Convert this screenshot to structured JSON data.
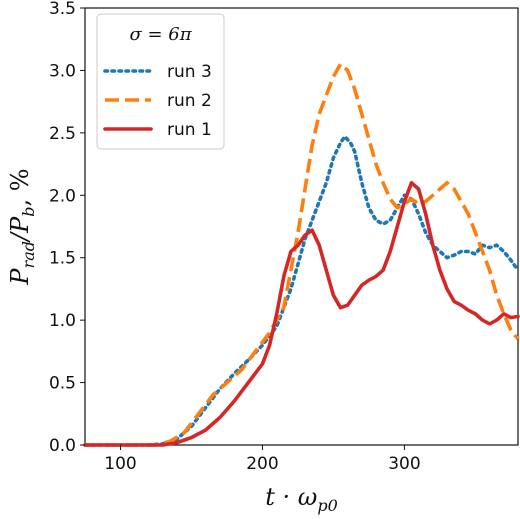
{
  "chart_data": {
    "type": "line",
    "xlabel": "t · ω",
    "xlabel_sub": "p0",
    "ylabel_main": "P",
    "ylabel_sub1": "rad",
    "ylabel_mid": "/P",
    "ylabel_sub2": "b",
    "ylabel_tail": ", %",
    "xlim": [
      75,
      380
    ],
    "ylim": [
      0,
      3.5
    ],
    "xticks": [
      100,
      200,
      300
    ],
    "yticks": [
      0.0,
      0.5,
      1.0,
      1.5,
      2.0,
      2.5,
      3.0,
      3.5
    ],
    "ytick_labels": [
      "0.0",
      "0.5",
      "1.0",
      "1.5",
      "2.0",
      "2.5",
      "3.0",
      "3.5"
    ],
    "grid": false,
    "legend": {
      "title": "σ = 6π",
      "placement": "top-left"
    },
    "series": [
      {
        "name": "run 3",
        "color": "#1f77b4",
        "style": "dotted",
        "points": [
          [
            75,
            0
          ],
          [
            120,
            0
          ],
          [
            130,
            0.01
          ],
          [
            140,
            0.05
          ],
          [
            150,
            0.15
          ],
          [
            160,
            0.3
          ],
          [
            170,
            0.45
          ],
          [
            180,
            0.57
          ],
          [
            190,
            0.68
          ],
          [
            200,
            0.8
          ],
          [
            210,
            0.95
          ],
          [
            220,
            1.25
          ],
          [
            225,
            1.45
          ],
          [
            230,
            1.65
          ],
          [
            235,
            1.8
          ],
          [
            240,
            1.95
          ],
          [
            245,
            2.1
          ],
          [
            250,
            2.3
          ],
          [
            255,
            2.42
          ],
          [
            258,
            2.47
          ],
          [
            262,
            2.42
          ],
          [
            265,
            2.35
          ],
          [
            270,
            2.1
          ],
          [
            275,
            1.9
          ],
          [
            280,
            1.8
          ],
          [
            285,
            1.77
          ],
          [
            290,
            1.8
          ],
          [
            295,
            1.9
          ],
          [
            300,
            2.0
          ],
          [
            305,
            1.97
          ],
          [
            310,
            1.85
          ],
          [
            315,
            1.7
          ],
          [
            320,
            1.6
          ],
          [
            325,
            1.55
          ],
          [
            330,
            1.5
          ],
          [
            335,
            1.52
          ],
          [
            340,
            1.55
          ],
          [
            345,
            1.55
          ],
          [
            350,
            1.53
          ],
          [
            355,
            1.6
          ],
          [
            360,
            1.58
          ],
          [
            365,
            1.6
          ],
          [
            370,
            1.55
          ],
          [
            375,
            1.48
          ],
          [
            380,
            1.4
          ]
        ]
      },
      {
        "name": "run 2",
        "color": "#ff7f0e",
        "style": "dashed",
        "points": [
          [
            75,
            0
          ],
          [
            125,
            0
          ],
          [
            135,
            0.03
          ],
          [
            145,
            0.1
          ],
          [
            155,
            0.25
          ],
          [
            165,
            0.4
          ],
          [
            175,
            0.5
          ],
          [
            185,
            0.6
          ],
          [
            195,
            0.75
          ],
          [
            205,
            0.9
          ],
          [
            215,
            1.1
          ],
          [
            220,
            1.4
          ],
          [
            225,
            1.7
          ],
          [
            230,
            2.05
          ],
          [
            235,
            2.4
          ],
          [
            240,
            2.65
          ],
          [
            245,
            2.8
          ],
          [
            250,
            2.95
          ],
          [
            255,
            3.05
          ],
          [
            260,
            3.0
          ],
          [
            265,
            2.85
          ],
          [
            270,
            2.65
          ],
          [
            275,
            2.45
          ],
          [
            280,
            2.25
          ],
          [
            285,
            2.1
          ],
          [
            290,
            1.97
          ],
          [
            295,
            1.9
          ],
          [
            300,
            1.93
          ],
          [
            305,
            1.97
          ],
          [
            310,
            1.93
          ],
          [
            315,
            1.95
          ],
          [
            320,
            2.0
          ],
          [
            325,
            2.05
          ],
          [
            330,
            2.1
          ],
          [
            335,
            2.05
          ],
          [
            340,
            1.95
          ],
          [
            345,
            1.85
          ],
          [
            350,
            1.7
          ],
          [
            355,
            1.55
          ],
          [
            360,
            1.4
          ],
          [
            365,
            1.2
          ],
          [
            370,
            1.05
          ],
          [
            375,
            0.92
          ],
          [
            380,
            0.85
          ]
        ]
      },
      {
        "name": "run 1",
        "color": "#d62728",
        "style": "solid",
        "points": [
          [
            75,
            0
          ],
          [
            130,
            0
          ],
          [
            140,
            0.02
          ],
          [
            150,
            0.06
          ],
          [
            160,
            0.12
          ],
          [
            170,
            0.22
          ],
          [
            180,
            0.35
          ],
          [
            190,
            0.5
          ],
          [
            200,
            0.65
          ],
          [
            205,
            0.8
          ],
          [
            210,
            1.05
          ],
          [
            215,
            1.35
          ],
          [
            220,
            1.55
          ],
          [
            225,
            1.6
          ],
          [
            230,
            1.68
          ],
          [
            235,
            1.72
          ],
          [
            240,
            1.6
          ],
          [
            245,
            1.4
          ],
          [
            250,
            1.2
          ],
          [
            255,
            1.1
          ],
          [
            260,
            1.12
          ],
          [
            265,
            1.2
          ],
          [
            270,
            1.28
          ],
          [
            275,
            1.32
          ],
          [
            280,
            1.35
          ],
          [
            285,
            1.4
          ],
          [
            290,
            1.55
          ],
          [
            295,
            1.75
          ],
          [
            300,
            1.95
          ],
          [
            305,
            2.1
          ],
          [
            310,
            2.05
          ],
          [
            315,
            1.85
          ],
          [
            320,
            1.6
          ],
          [
            325,
            1.4
          ],
          [
            330,
            1.25
          ],
          [
            335,
            1.15
          ],
          [
            340,
            1.12
          ],
          [
            345,
            1.08
          ],
          [
            350,
            1.05
          ],
          [
            355,
            1.0
          ],
          [
            360,
            0.97
          ],
          [
            365,
            1.0
          ],
          [
            370,
            1.05
          ],
          [
            375,
            1.02
          ],
          [
            380,
            1.03
          ]
        ]
      }
    ]
  }
}
